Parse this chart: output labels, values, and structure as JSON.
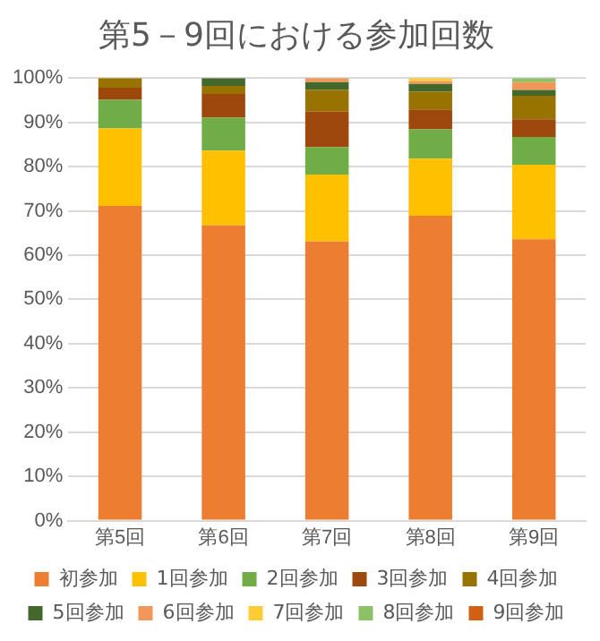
{
  "chart_data": {
    "type": "bar",
    "title": "第5－9回における参加回数",
    "categories": [
      "第5回",
      "第6回",
      "第7回",
      "第8回",
      "第9回"
    ],
    "stacked": true,
    "ylim": [
      0,
      100
    ],
    "yticks": [
      {
        "value": 0,
        "label": "0%"
      },
      {
        "value": 10,
        "label": "10%"
      },
      {
        "value": 20,
        "label": "20%"
      },
      {
        "value": 30,
        "label": "30%"
      },
      {
        "value": 40,
        "label": "40%"
      },
      {
        "value": 50,
        "label": "50%"
      },
      {
        "value": 60,
        "label": "60%"
      },
      {
        "value": 70,
        "label": "70%"
      },
      {
        "value": 80,
        "label": "80%"
      },
      {
        "value": 90,
        "label": "90%"
      },
      {
        "value": 100,
        "label": "100%"
      }
    ],
    "grid": "y",
    "legend": "bottom",
    "series": [
      {
        "name": "初参加",
        "color": "#ed7d31",
        "values": [
          71.1,
          66.7,
          63.1,
          68.9,
          63.6
        ]
      },
      {
        "name": "1回参加",
        "color": "#ffc000",
        "values": [
          17.5,
          16.9,
          15.1,
          12.9,
          16.8
        ]
      },
      {
        "name": "2回参加",
        "color": "#70ad47",
        "values": [
          6.5,
          7.5,
          6.2,
          6.6,
          6.3
        ]
      },
      {
        "name": "3回参加",
        "color": "#9e480e",
        "values": [
          2.7,
          5.3,
          8.0,
          4.5,
          4.0
        ]
      },
      {
        "name": "4回参加",
        "color": "#997300",
        "values": [
          2.2,
          1.8,
          4.9,
          4.0,
          5.3
        ]
      },
      {
        "name": "5回参加",
        "color": "#43682b",
        "values": [
          0,
          1.8,
          1.8,
          1.8,
          1.3
        ]
      },
      {
        "name": "6回参加",
        "color": "#f1975a",
        "values": [
          0,
          0,
          0.9,
          0.6,
          1.8
        ]
      },
      {
        "name": "7回参加",
        "color": "#ffcd33",
        "values": [
          0,
          0,
          0,
          0.7,
          0
        ]
      },
      {
        "name": "8回参加",
        "color": "#8cc168",
        "values": [
          0,
          0,
          0,
          0,
          0.9
        ]
      },
      {
        "name": "9回参加",
        "color": "#d26012",
        "values": [
          0,
          0,
          0,
          0,
          0
        ]
      }
    ]
  }
}
